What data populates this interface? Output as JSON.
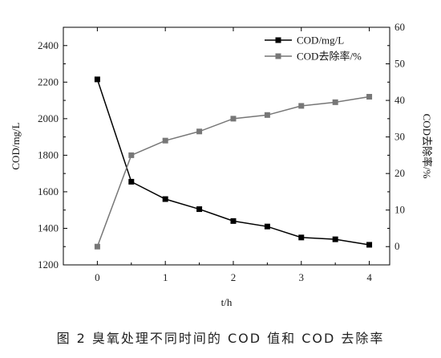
{
  "caption": "图 2   臭氧处理不同时间的 COD 值和 COD 去除率",
  "chart_data": {
    "type": "line",
    "x": [
      0,
      0.5,
      1,
      1.5,
      2,
      2.5,
      3,
      3.5,
      4
    ],
    "xlabel": "t/h",
    "xlim": [
      -0.5,
      4.3
    ],
    "xticks": [
      0,
      1,
      2,
      3,
      4
    ],
    "ylabel_left": "COD/mg/L",
    "ylim_left": [
      1200,
      2500
    ],
    "yticks_left": [
      1200,
      1400,
      1600,
      1800,
      2000,
      2200,
      2400
    ],
    "ylabel_right": "COD去除率/%",
    "ylim_right": [
      -5,
      60
    ],
    "yticks_right": [
      0,
      10,
      20,
      30,
      40,
      50,
      60
    ],
    "legend_position": "top-right",
    "grid": false,
    "series": [
      {
        "name": "COD/mg/L",
        "axis": "left",
        "marker": "square",
        "color": "#000000",
        "values": [
          2215,
          1655,
          1560,
          1505,
          1440,
          1410,
          1350,
          1340,
          1310
        ]
      },
      {
        "name": "COD去除率/%",
        "axis": "right",
        "marker": "square",
        "color": "#777777",
        "values": [
          0,
          25,
          29,
          31.5,
          35,
          36,
          38.5,
          39.5,
          41
        ]
      }
    ]
  }
}
